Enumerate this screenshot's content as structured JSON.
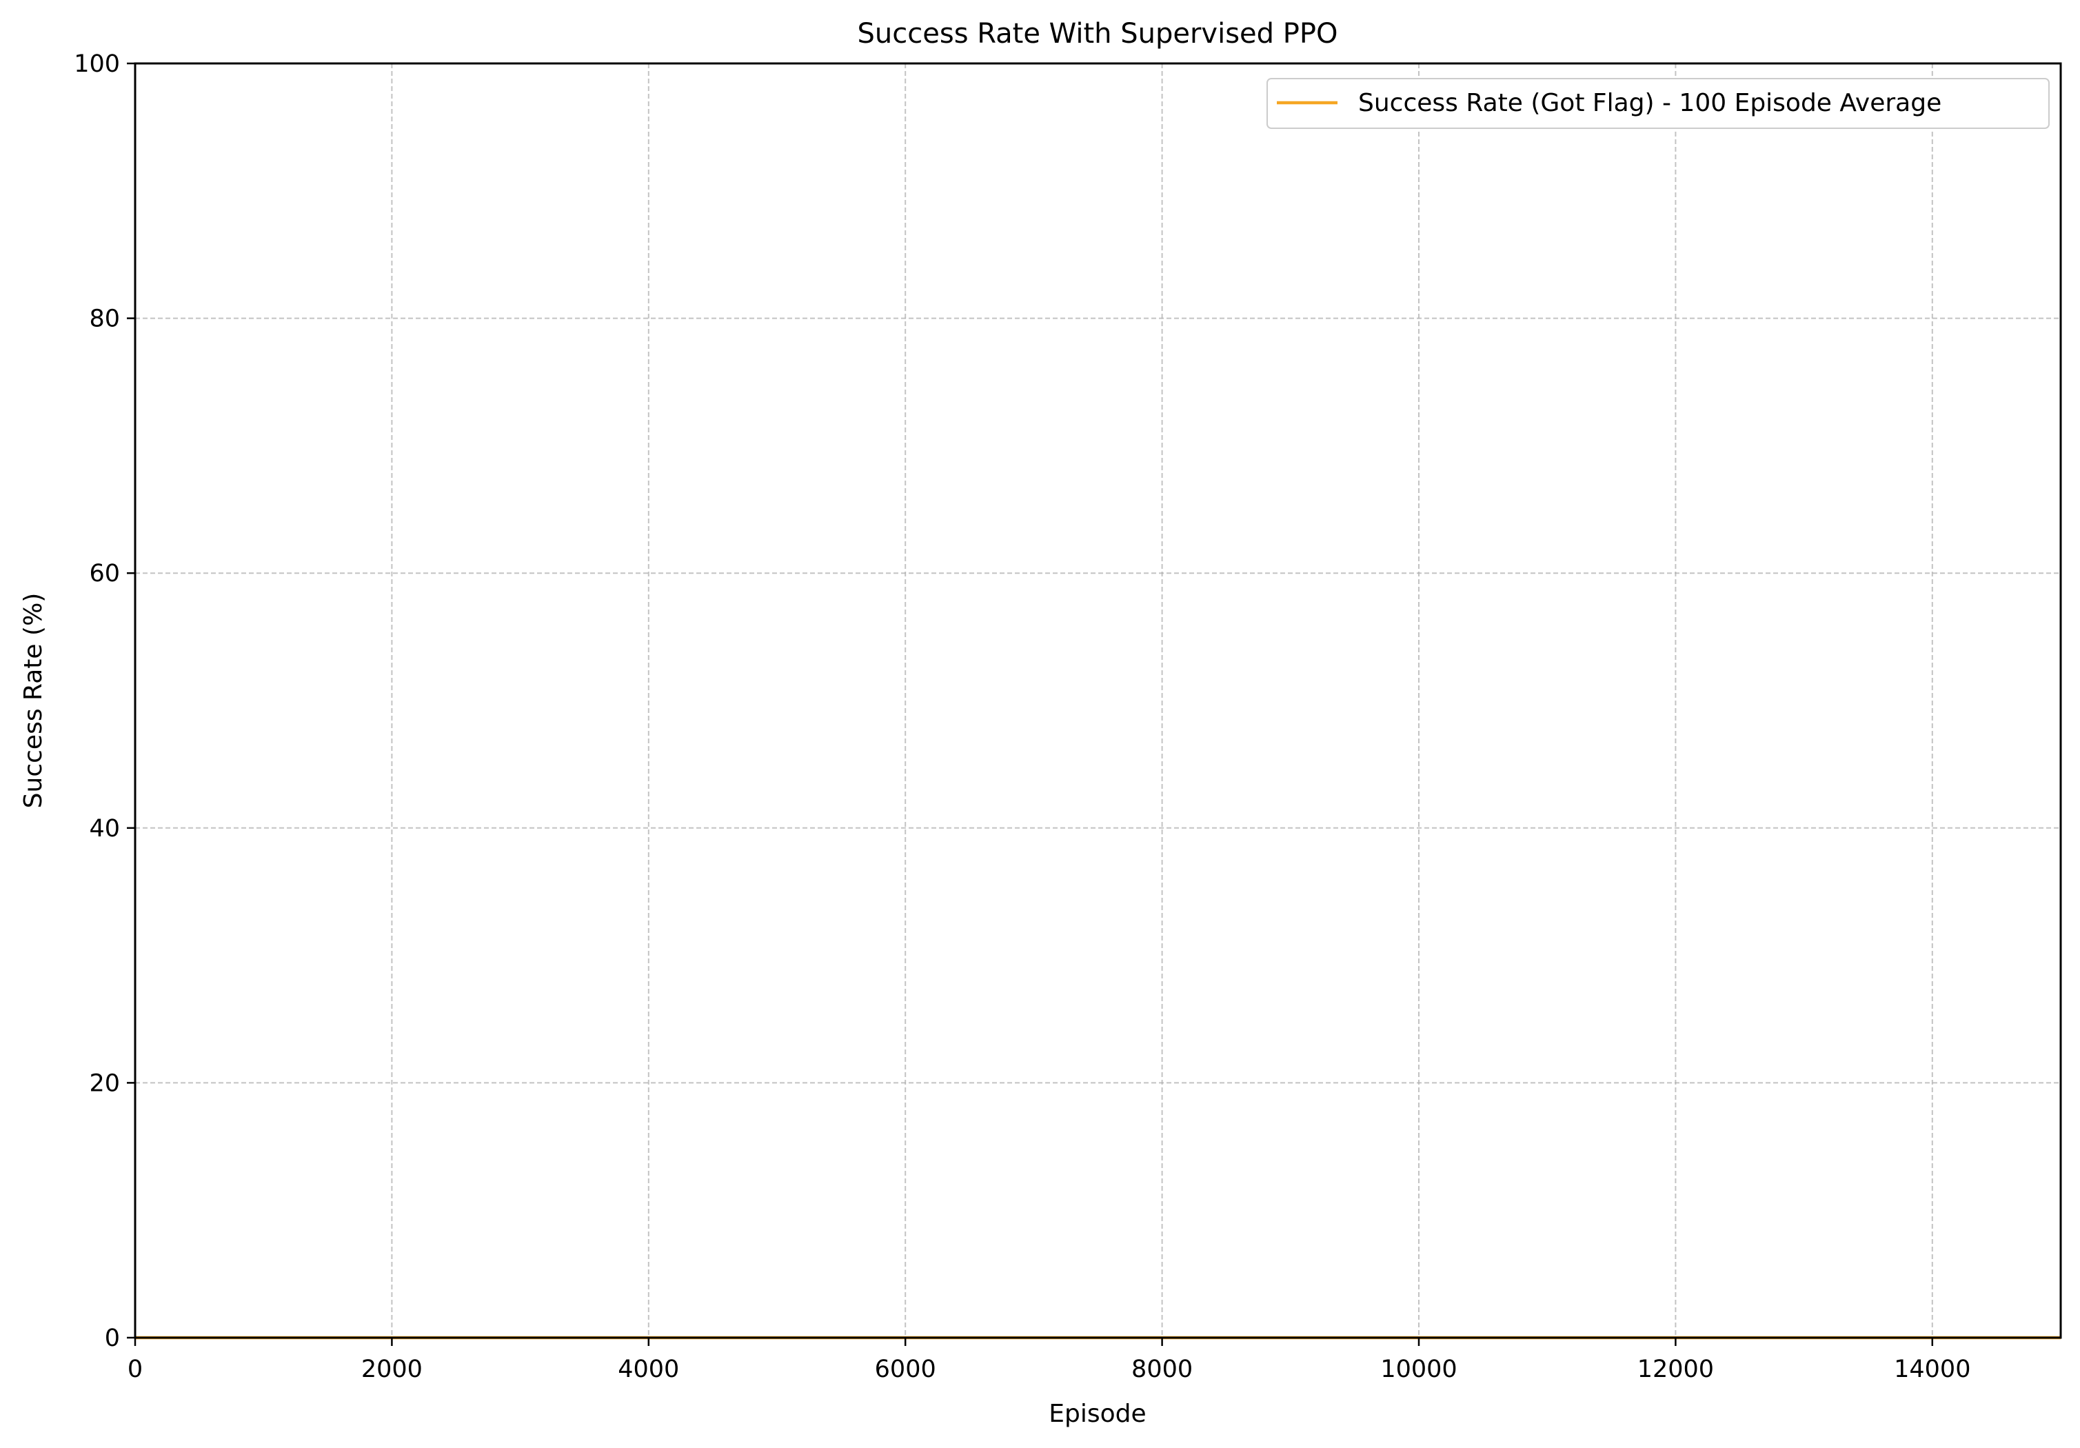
{
  "chart_data": {
    "type": "line",
    "title": "Success Rate With Supervised PPO",
    "xlabel": "Episode",
    "ylabel": "Success Rate (%)",
    "xlim": [
      0,
      15000
    ],
    "ylim": [
      0,
      100
    ],
    "xticks": [
      0,
      2000,
      4000,
      6000,
      8000,
      10000,
      12000,
      14000
    ],
    "xtick_labels": [
      "0",
      "2000",
      "4000",
      "6000",
      "8000",
      "10000",
      "12000",
      "14000"
    ],
    "yticks": [
      0,
      20,
      40,
      60,
      80,
      100
    ],
    "ytick_labels": [
      "0",
      "20",
      "40",
      "60",
      "80",
      "100"
    ],
    "grid": true,
    "legend_position": "top-right",
    "series": [
      {
        "name": "Success Rate (Got Flag) - 100 Episode Average",
        "color": "#f5a623",
        "x": [
          0,
          15000
        ],
        "y": [
          0,
          0
        ]
      }
    ]
  }
}
